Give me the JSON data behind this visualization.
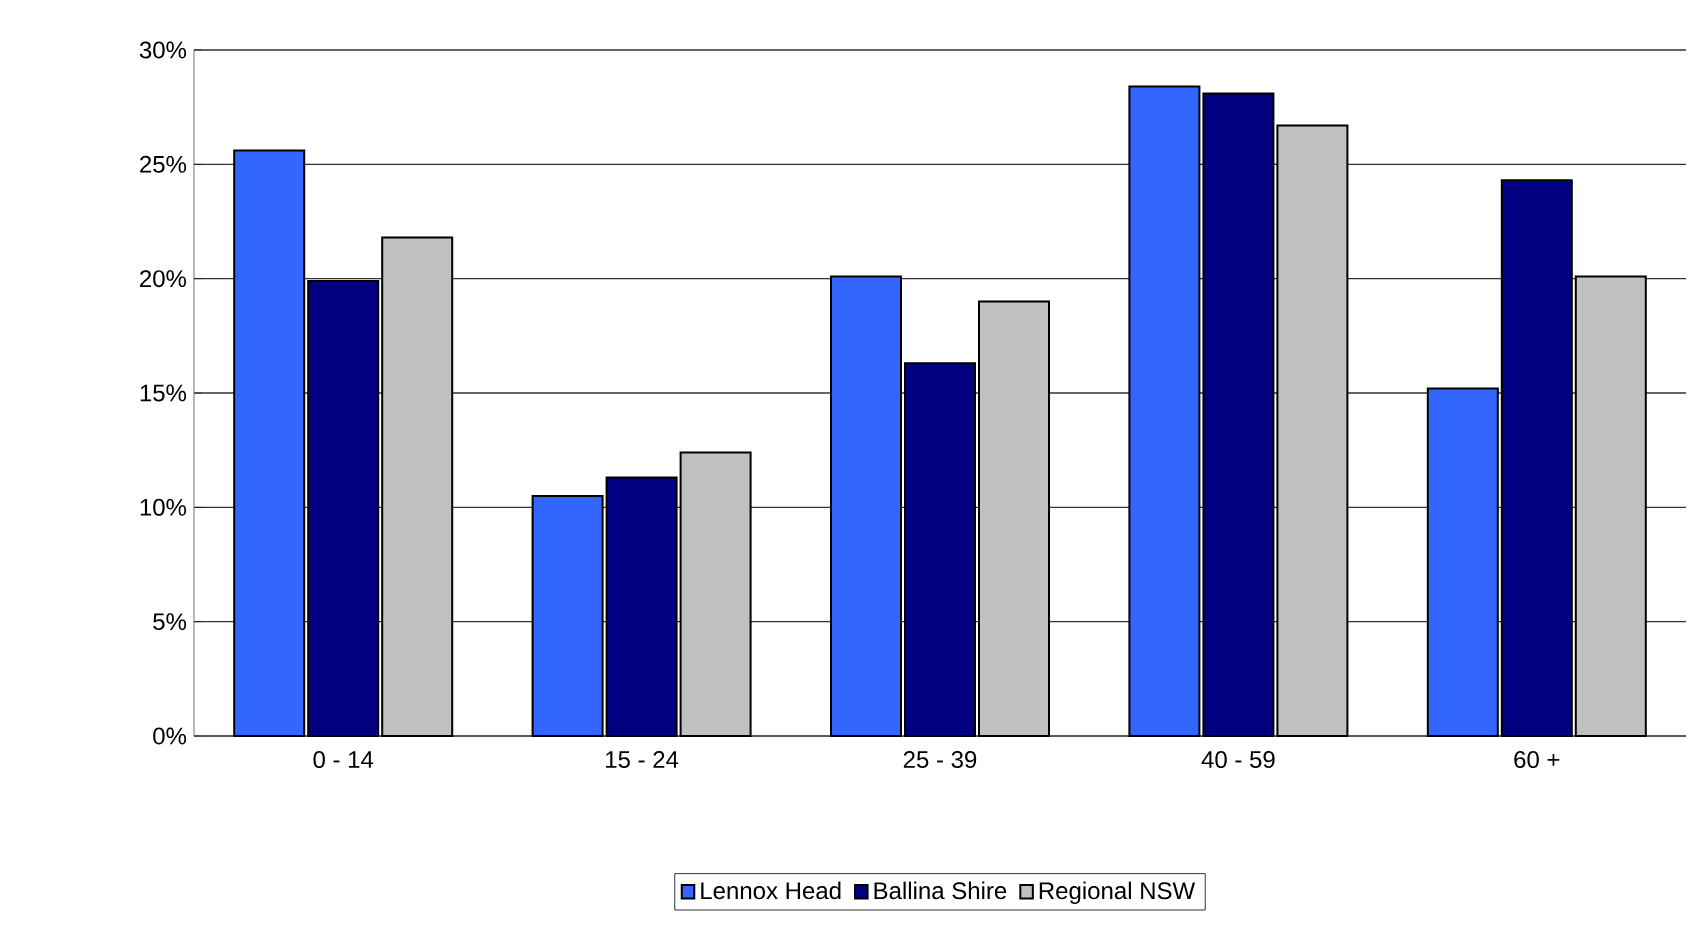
{
  "chart_data": {
    "type": "bar",
    "categories": [
      "0 - 14",
      "15 - 24",
      "25 - 39",
      "40 - 59",
      "60 +"
    ],
    "series": [
      {
        "name": "Lennox Head",
        "color": "#3366ff",
        "values": [
          25.6,
          10.5,
          20.1,
          28.4,
          15.2
        ]
      },
      {
        "name": "Ballina Shire",
        "color": "#000080",
        "values": [
          19.9,
          11.3,
          16.3,
          28.1,
          24.3
        ]
      },
      {
        "name": "Regional NSW",
        "color": "#c0c0c0",
        "values": [
          21.8,
          12.4,
          19.0,
          26.7,
          20.1
        ]
      }
    ],
    "ylim": [
      0,
      30
    ],
    "yticks": [
      {
        "value": 0,
        "label": "0%"
      },
      {
        "value": 5,
        "label": "5%"
      },
      {
        "value": 10,
        "label": "10%"
      },
      {
        "value": 15,
        "label": "15%"
      },
      {
        "value": 20,
        "label": "20%"
      },
      {
        "value": 25,
        "label": "25%"
      },
      {
        "value": 30,
        "label": "30%"
      }
    ],
    "grid": "y",
    "legend": "bottom"
  }
}
